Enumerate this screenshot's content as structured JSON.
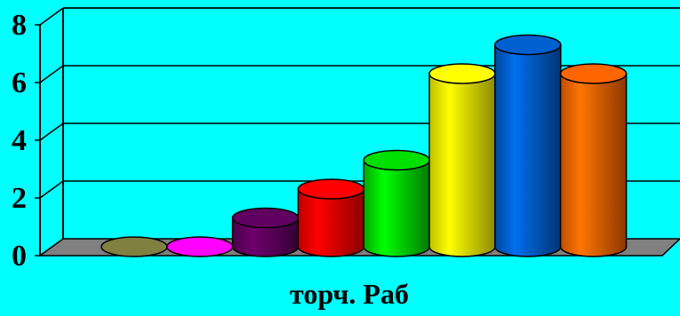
{
  "chart_data": {
    "type": "bar",
    "title": "",
    "xlabel": "торч. Раб",
    "ylabel": "",
    "ylim": [
      0,
      8
    ],
    "yticks": [
      0,
      2,
      4,
      6,
      8
    ],
    "grid": true,
    "legend": "none",
    "values": [
      0,
      0,
      1,
      2,
      3,
      6,
      7,
      6
    ],
    "colors": [
      "#808040",
      "#ff00ff",
      "#600060",
      "#ff0000",
      "#00e000",
      "#ffff00",
      "#0060d0",
      "#ff6600"
    ],
    "background": "#00ffff",
    "floor_color": "#808080"
  }
}
